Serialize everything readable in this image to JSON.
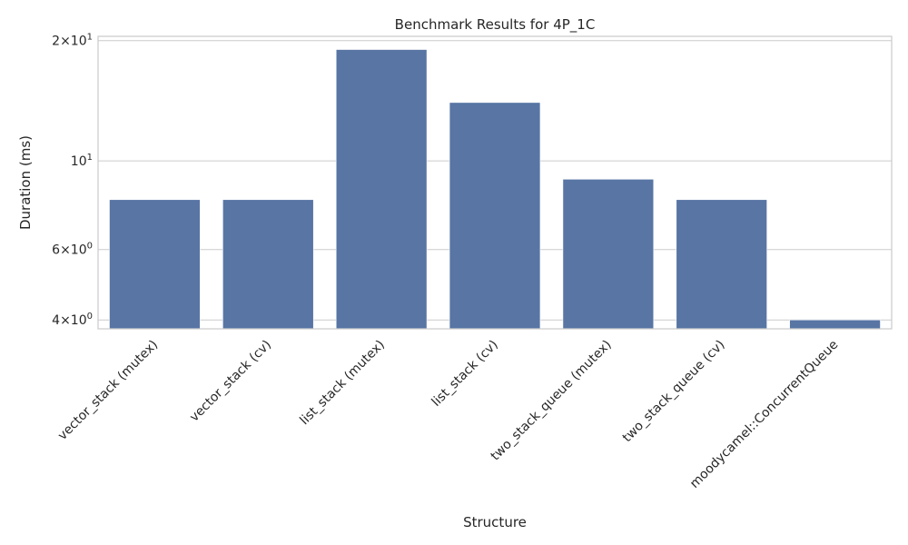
{
  "chart_data": {
    "type": "bar",
    "title": "Benchmark Results for 4P_1C",
    "xlabel": "Structure",
    "ylabel": "Duration (ms)",
    "yscale": "log",
    "ylim": [
      3.8,
      20.5
    ],
    "yticks": [
      {
        "value": 4,
        "base": "4",
        "mult": "×10",
        "exp": "0"
      },
      {
        "value": 6,
        "base": "6",
        "mult": "×10",
        "exp": "0"
      },
      {
        "value": 10,
        "base": "",
        "mult": "10",
        "exp": "1"
      },
      {
        "value": 20,
        "base": "2",
        "mult": "×10",
        "exp": "1"
      }
    ],
    "grid": true,
    "categories": [
      "vector_stack (mutex)",
      "vector_stack (cv)",
      "list_stack (mutex)",
      "list_stack (cv)",
      "two_stack_queue (mutex)",
      "two_stack_queue (cv)",
      "moodycamel::ConcurrentQueue"
    ],
    "values": [
      8,
      8,
      19,
      14,
      9,
      8,
      4
    ],
    "color": "#5875a4"
  }
}
